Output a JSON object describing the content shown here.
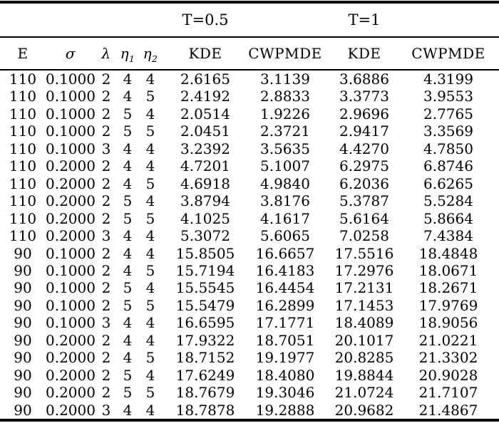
{
  "table": {
    "group_headers": {
      "t_half": "T=0.5",
      "t_one": "T=1"
    },
    "column_headers": [
      "E",
      "σ",
      "λ",
      "η",
      "η",
      "KDE",
      "CWPMDE",
      "KDE",
      "CWPMDE"
    ],
    "eta_subscripts": [
      "1",
      "2"
    ],
    "rows": [
      [
        "110",
        "0.1000",
        "2",
        "4",
        "4",
        "2.6165",
        "3.1139",
        "3.6886",
        "4.3199"
      ],
      [
        "110",
        "0.1000",
        "2",
        "4",
        "5",
        "2.4192",
        "2.8833",
        "3.3773",
        "3.9553"
      ],
      [
        "110",
        "0.1000",
        "2",
        "5",
        "4",
        "2.0514",
        "1.9226",
        "2.9696",
        "2.7765"
      ],
      [
        "110",
        "0.1000",
        "2",
        "5",
        "5",
        "2.0451",
        "2.3721",
        "2.9417",
        "3.3569"
      ],
      [
        "110",
        "0.1000",
        "3",
        "4",
        "4",
        "3.2392",
        "3.5635",
        "4.4270",
        "4.7850"
      ],
      [
        "110",
        "0.2000",
        "2",
        "4",
        "4",
        "4.7201",
        "5.1007",
        "6.2975",
        "6.8746"
      ],
      [
        "110",
        "0.2000",
        "2",
        "4",
        "5",
        "4.6918",
        "4.9840",
        "6.2036",
        "6.6265"
      ],
      [
        "110",
        "0.2000",
        "2",
        "5",
        "4",
        "3.8794",
        "3.8176",
        "5.3787",
        "5.5284"
      ],
      [
        "110",
        "0.2000",
        "2",
        "5",
        "5",
        "4.1025",
        "4.1617",
        "5.6164",
        "5.8664"
      ],
      [
        "110",
        "0.2000",
        "3",
        "4",
        "4",
        "5.3072",
        "5.6065",
        "7.0258",
        "7.4384"
      ],
      [
        "90",
        "0.1000",
        "2",
        "4",
        "4",
        "15.8505",
        "16.6657",
        "17.5516",
        "18.4848"
      ],
      [
        "90",
        "0.1000",
        "2",
        "4",
        "5",
        "15.7194",
        "16.4183",
        "17.2976",
        "18.0671"
      ],
      [
        "90",
        "0.1000",
        "2",
        "5",
        "4",
        "15.5545",
        "16.4454",
        "17.2131",
        "18.2671"
      ],
      [
        "90",
        "0.1000",
        "2",
        "5",
        "5",
        "15.5479",
        "16.2899",
        "17.1453",
        "17.9769"
      ],
      [
        "90",
        "0.1000",
        "3",
        "4",
        "4",
        "16.6595",
        "17.1771",
        "18.4089",
        "18.9056"
      ],
      [
        "90",
        "0.2000",
        "2",
        "4",
        "4",
        "17.9322",
        "18.7051",
        "20.1017",
        "21.0221"
      ],
      [
        "90",
        "0.2000",
        "2",
        "4",
        "5",
        "18.7152",
        "19.1977",
        "20.8285",
        "21.3302"
      ],
      [
        "90",
        "0.2000",
        "2",
        "5",
        "4",
        "17.6249",
        "18.4080",
        "19.8844",
        "20.9028"
      ],
      [
        "90",
        "0.2000",
        "2",
        "5",
        "5",
        "18.7679",
        "19.3046",
        "21.0724",
        "21.7107"
      ],
      [
        "90",
        "0.2000",
        "3",
        "4",
        "4",
        "18.7878",
        "19.2888",
        "20.9682",
        "21.4867"
      ]
    ],
    "colors": {
      "text": "#000000",
      "rule": "#000000",
      "background": "#ffffff"
    }
  }
}
